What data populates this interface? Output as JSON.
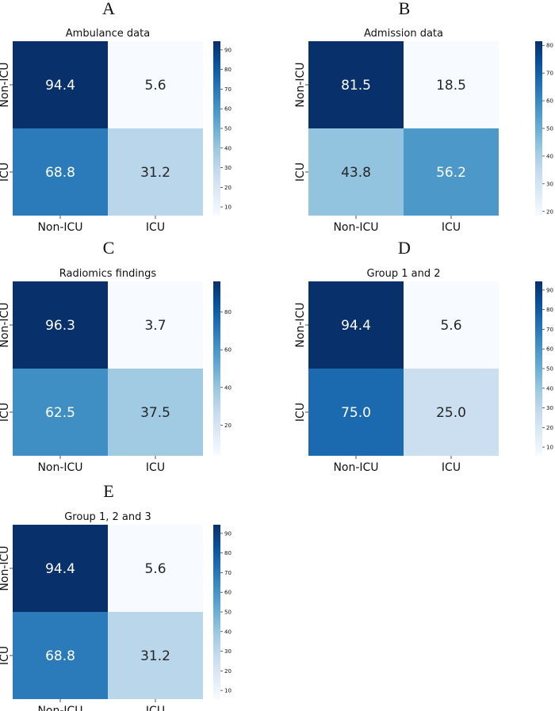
{
  "chart_data": [
    {
      "type": "heatmap",
      "panel": "A",
      "title": "Ambulance data",
      "rows": [
        "Non-ICU",
        "ICU"
      ],
      "cols": [
        "Non-ICU",
        "ICU"
      ],
      "values": [
        [
          94.4,
          5.6
        ],
        [
          68.8,
          31.2
        ]
      ],
      "colorbar_ticks": [
        10,
        20,
        30,
        40,
        50,
        60,
        70,
        80,
        90
      ],
      "colorbar_range": [
        5.6,
        94.4
      ],
      "colormap": "Blues"
    },
    {
      "type": "heatmap",
      "panel": "B",
      "title": "Admission data",
      "rows": [
        "Non-ICU",
        "ICU"
      ],
      "cols": [
        "Non-ICU",
        "ICU"
      ],
      "values": [
        [
          81.5,
          18.5
        ],
        [
          43.8,
          56.2
        ]
      ],
      "colorbar_ticks": [
        20,
        30,
        40,
        50,
        60,
        70,
        80
      ],
      "colorbar_range": [
        18.5,
        81.5
      ],
      "colormap": "Blues"
    },
    {
      "type": "heatmap",
      "panel": "C",
      "title": "Radiomics  findings",
      "rows": [
        "Non-ICU",
        "ICU"
      ],
      "cols": [
        "Non-ICU",
        "ICU"
      ],
      "values": [
        [
          96.3,
          3.7
        ],
        [
          62.5,
          37.5
        ]
      ],
      "colorbar_ticks": [
        20,
        40,
        60,
        80
      ],
      "colorbar_range": [
        3.7,
        96.3
      ],
      "colormap": "Blues"
    },
    {
      "type": "heatmap",
      "panel": "D",
      "title": "Group 1 and 2",
      "rows": [
        "Non-ICU",
        "ICU"
      ],
      "cols": [
        "Non-ICU",
        "ICU"
      ],
      "values": [
        [
          94.4,
          5.6
        ],
        [
          75.0,
          25.0
        ]
      ],
      "colorbar_ticks": [
        10,
        20,
        30,
        40,
        50,
        60,
        70,
        80,
        90
      ],
      "colorbar_range": [
        5.6,
        94.4
      ],
      "colormap": "Blues"
    },
    {
      "type": "heatmap",
      "panel": "E",
      "title": "Group 1, 2 and 3",
      "rows": [
        "Non-ICU",
        "ICU"
      ],
      "cols": [
        "Non-ICU",
        "ICU"
      ],
      "values": [
        [
          94.4,
          5.6
        ],
        [
          68.8,
          31.2
        ]
      ],
      "colorbar_ticks": [
        10,
        20,
        30,
        40,
        50,
        60,
        70,
        80,
        90
      ],
      "colorbar_range": [
        5.6,
        94.4
      ],
      "colormap": "Blues"
    }
  ]
}
